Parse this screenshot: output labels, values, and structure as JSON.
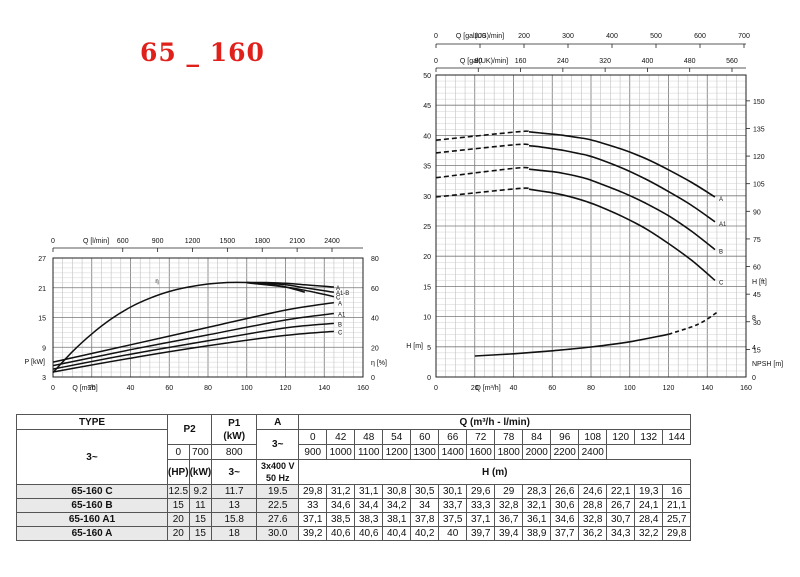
{
  "title": "65 _ 160",
  "chart_data": [
    {
      "type": "line",
      "id": "pump-curves",
      "top_axis_1_label": "Q [gal(US)/min]",
      "top_axis_1_ticks": [
        "0",
        "100",
        "200",
        "300",
        "400",
        "500",
        "600",
        "700"
      ],
      "top_axis_2_label": "Q [gal(UK)/min]",
      "top_axis_2_ticks": [
        "0",
        "80",
        "160",
        "240",
        "320",
        "400",
        "480",
        "560"
      ],
      "xlabel": "Q [m³/h]",
      "xticks": [
        "0",
        "20",
        "40",
        "60",
        "80",
        "100",
        "120",
        "140",
        "160"
      ],
      "xlim": [
        0,
        160
      ],
      "y_left_ticks": [
        "0",
        "5",
        "10",
        "15",
        "20",
        "25",
        "30",
        "35",
        "40",
        "45",
        "50"
      ],
      "ylim": [
        0,
        50
      ],
      "y_right_label": "H [ft]",
      "y_right_ticks": [
        "0",
        "15",
        "30",
        "45",
        "60",
        "75",
        "90",
        "105",
        "120",
        "135",
        "150"
      ],
      "y_lower_left_label": "H [m]",
      "y_lower_right_label": "NPSH [m]",
      "y_lower_right_ticks": [
        "0",
        "4",
        "8"
      ],
      "grid": true,
      "series": [
        {
          "name": "A",
          "x": [
            0,
            42,
            48,
            54,
            60,
            66,
            72,
            78,
            84,
            96,
            108,
            120,
            132,
            144
          ],
          "y": [
            39.2,
            40.6,
            40.6,
            40.4,
            40.2,
            40,
            39.7,
            39.4,
            38.9,
            37.7,
            36.2,
            34.3,
            32.2,
            29.8
          ]
        },
        {
          "name": "A1",
          "x": [
            0,
            42,
            48,
            54,
            60,
            66,
            72,
            78,
            84,
            96,
            108,
            120,
            132,
            144
          ],
          "y": [
            37.1,
            38.5,
            38.3,
            38.1,
            37.8,
            37.5,
            37.1,
            36.7,
            36.1,
            34.6,
            32.8,
            30.7,
            28.4,
            25.7
          ]
        },
        {
          "name": "B",
          "x": [
            0,
            42,
            48,
            54,
            60,
            66,
            72,
            78,
            84,
            96,
            108,
            120,
            132,
            144
          ],
          "y": [
            33,
            34.6,
            34.4,
            34.2,
            34,
            33.7,
            33.3,
            32.8,
            32.1,
            30.6,
            28.8,
            26.7,
            24.1,
            21.1
          ]
        },
        {
          "name": "C",
          "x": [
            0,
            42,
            48,
            54,
            60,
            66,
            72,
            78,
            84,
            96,
            108,
            120,
            132,
            144
          ],
          "y": [
            29.8,
            31.2,
            31.1,
            30.8,
            30.5,
            30.1,
            29.6,
            29,
            28.3,
            26.6,
            24.6,
            22.1,
            19.3,
            16
          ]
        }
      ],
      "npsh": {
        "x": [
          20,
          40,
          60,
          80,
          100,
          120,
          135,
          145
        ],
        "y": [
          2.8,
          3.1,
          3.5,
          4,
          4.7,
          5.7,
          7,
          8.6
        ]
      }
    },
    {
      "type": "line",
      "id": "power-efficiency",
      "top_axis_label": "Q [l/min]",
      "top_axis_ticks": [
        "0",
        "600",
        "900",
        "1200",
        "1500",
        "1800",
        "2100",
        "2400"
      ],
      "xlabel": "Q [m³/h]",
      "xticks": [
        "0",
        "20",
        "40",
        "60",
        "80",
        "100",
        "120",
        "140",
        "160"
      ],
      "xlim": [
        0,
        160
      ],
      "ylabel": "P [kW]",
      "yticks": [
        "3",
        "9",
        "15",
        "21",
        "27"
      ],
      "ylim": [
        3,
        27
      ],
      "y_right_label": "η [%]",
      "y_right_ticks": [
        "0",
        "20",
        "40",
        "60",
        "80"
      ],
      "y_right_lim": [
        0,
        80
      ],
      "efficiency_series": [
        {
          "name": "η",
          "x": [
            0,
            10,
            20,
            30,
            40,
            50,
            60,
            70,
            80,
            90,
            100,
            110,
            120,
            130
          ],
          "y": [
            3,
            17,
            29,
            39,
            47,
            53,
            57.5,
            60.5,
            62.5,
            63.5,
            63.5,
            62.5,
            60.5,
            57
          ]
        },
        {
          "name": "A",
          "x": [
            100,
            110,
            120,
            130,
            140,
            145
          ],
          "y": [
            63.5,
            63.5,
            63,
            62,
            61,
            60.5
          ]
        },
        {
          "name": "A1-B",
          "x": [
            100,
            110,
            120,
            130,
            140,
            145
          ],
          "y": [
            63.5,
            63,
            62,
            60,
            58,
            57
          ]
        },
        {
          "name": "C",
          "x": [
            100,
            110,
            120,
            130,
            140,
            145
          ],
          "y": [
            63.3,
            62,
            60.5,
            58.3,
            55.5,
            54
          ]
        }
      ],
      "power_series": [
        {
          "name": "A",
          "x": [
            0,
            40,
            80,
            120,
            145
          ],
          "y": [
            6,
            9.5,
            13,
            16.5,
            18
          ]
        },
        {
          "name": "A1",
          "x": [
            0,
            40,
            80,
            120,
            145
          ],
          "y": [
            5.3,
            8.5,
            11.5,
            14.5,
            15.8
          ]
        },
        {
          "name": "B",
          "x": [
            0,
            40,
            80,
            120,
            145
          ],
          "y": [
            4.6,
            7.6,
            10.3,
            12.9,
            13.8
          ]
        },
        {
          "name": "C",
          "x": [
            0,
            40,
            80,
            120,
            145
          ],
          "y": [
            4,
            6.8,
            9.3,
            11.4,
            12.2
          ]
        }
      ]
    }
  ],
  "table": {
    "h_type": "TYPE",
    "h_p2": "P2",
    "h_p1": "P1\n(kW)",
    "h_a": "A",
    "h_q": "Q (m³/h - l/min)",
    "h_3_a": "3~",
    "h_3_b": "3~",
    "h_3_c": "3~",
    "h_voltage": "3x400 V\n50 Hz",
    "h_hp": "(HP)",
    "h_kw": "(kW)",
    "h_h": "H (m)",
    "q_m3h": [
      "0",
      "42",
      "48",
      "54",
      "60",
      "66",
      "72",
      "78",
      "84",
      "96",
      "108",
      "120",
      "132",
      "144"
    ],
    "q_lmin": [
      "0",
      "700",
      "800",
      "900",
      "1000",
      "1100",
      "1200",
      "1300",
      "1400",
      "1600",
      "1800",
      "2000",
      "2200",
      "2400"
    ],
    "rows": [
      {
        "type": "65-160 C",
        "hp": "12.5",
        "kw": "9.2",
        "p1": "11.7",
        "a": "19.5",
        "h": [
          "29,8",
          "31,2",
          "31,1",
          "30,8",
          "30,5",
          "30,1",
          "29,6",
          "29",
          "28,3",
          "26,6",
          "24,6",
          "22,1",
          "19,3",
          "16"
        ]
      },
      {
        "type": "65-160 B",
        "hp": "15",
        "kw": "11",
        "p1": "13",
        "a": "22.5",
        "h": [
          "33",
          "34,6",
          "34,4",
          "34,2",
          "34",
          "33,7",
          "33,3",
          "32,8",
          "32,1",
          "30,6",
          "28,8",
          "26,7",
          "24,1",
          "21,1"
        ]
      },
      {
        "type": "65-160 A1",
        "hp": "20",
        "kw": "15",
        "p1": "15.8",
        "a": "27.6",
        "h": [
          "37,1",
          "38,5",
          "38,3",
          "38,1",
          "37,8",
          "37,5",
          "37,1",
          "36,7",
          "36,1",
          "34,6",
          "32,8",
          "30,7",
          "28,4",
          "25,7"
        ]
      },
      {
        "type": "65-160 A",
        "hp": "20",
        "kw": "15",
        "p1": "18",
        "a": "30.0",
        "h": [
          "39,2",
          "40,6",
          "40,6",
          "40,4",
          "40,2",
          "40",
          "39,7",
          "39,4",
          "38,9",
          "37,7",
          "36,2",
          "34,3",
          "32,2",
          "29,8"
        ]
      }
    ]
  }
}
